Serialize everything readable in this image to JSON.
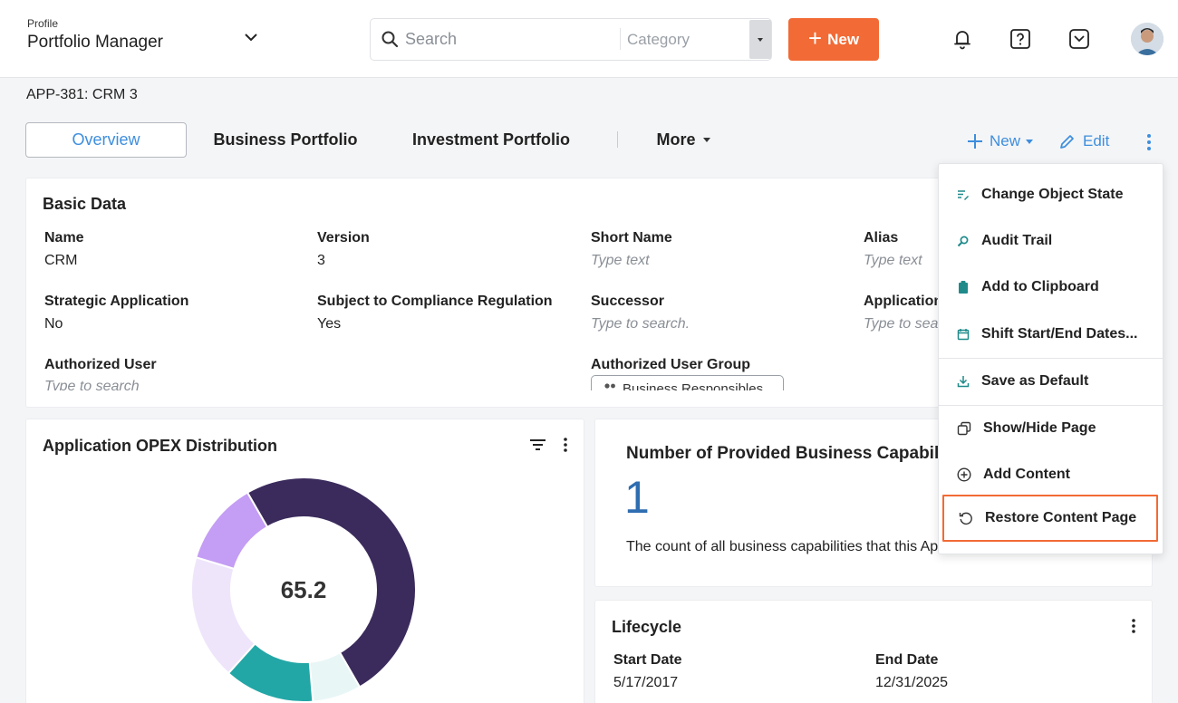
{
  "header": {
    "profile_label": "Profile",
    "profile_name": "Portfolio Manager",
    "search_placeholder": "Search",
    "category_label": "Category",
    "new_button": "New",
    "icons": [
      "bell-icon",
      "help-icon",
      "inbox-icon",
      "user-avatar"
    ]
  },
  "breadcrumb": "APP-381: CRM 3",
  "tabs": {
    "overview": "Overview",
    "business_portfolio": "Business Portfolio",
    "investment_portfolio": "Investment Portfolio",
    "more": "More"
  },
  "actions": {
    "new": "New",
    "edit": "Edit"
  },
  "basic_data": {
    "title": "Basic Data",
    "fields": {
      "name_label": "Name",
      "name_value": "CRM",
      "version_label": "Version",
      "version_value": "3",
      "short_name_label": "Short Name",
      "short_name_ph": "Type text",
      "alias_label": "Alias",
      "alias_ph": "Type text",
      "strategic_label": "Strategic Application",
      "strategic_value": "No",
      "compliance_label": "Subject to Compliance Regulation",
      "compliance_value": "Yes",
      "successor_label": "Successor",
      "successor_ph": "Type to search.",
      "application_label": "Application",
      "application_ph": "Type to sea",
      "authorized_user_label": "Authorized User",
      "authorized_user_ph": "Type to search",
      "authorized_group_label": "Authorized User Group",
      "authorized_group_chip": "Business Responsibles"
    }
  },
  "opex": {
    "title": "Application OPEX Distribution",
    "center_value": "65.2"
  },
  "chart_data": {
    "type": "pie",
    "title": "Application OPEX Distribution",
    "center_label": "65.2",
    "slices": [
      {
        "value": 50.0,
        "color": "#3b2b5c"
      },
      {
        "value": 7.0,
        "color": "#e8f6f6"
      },
      {
        "value": 13.0,
        "color": "#23a6a6"
      },
      {
        "value": 18.0,
        "color": "#eee5fb"
      },
      {
        "value": 12.0,
        "color": "#c49df4"
      }
    ]
  },
  "capabilities": {
    "title": "Number of Provided Business Capabilities",
    "value": "1",
    "description": "The count of all business capabilities that this Application provides"
  },
  "lifecycle": {
    "title": "Lifecycle",
    "start_label": "Start Date",
    "start_value": "5/17/2017",
    "end_label": "End Date",
    "end_value": "12/31/2025"
  },
  "menu": {
    "items": [
      {
        "label": "Change Object State",
        "icon": "change-state-icon"
      },
      {
        "label": "Audit Trail",
        "icon": "magnifier-icon"
      },
      {
        "label": "Add to Clipboard",
        "icon": "clipboard-icon"
      },
      {
        "label": "Shift Start/End Dates...",
        "icon": "calendar-icon"
      },
      {
        "label": "Save as Default",
        "icon": "download-icon"
      },
      {
        "label": "Show/Hide Page",
        "icon": "pages-icon"
      },
      {
        "label": "Add Content",
        "icon": "plus-circle-icon"
      },
      {
        "label": "Restore Content Page",
        "icon": "restore-icon"
      }
    ]
  },
  "colors": {
    "accent": "#3d8ede",
    "new_button": "#f26a35",
    "highlight": "#f26a35"
  }
}
